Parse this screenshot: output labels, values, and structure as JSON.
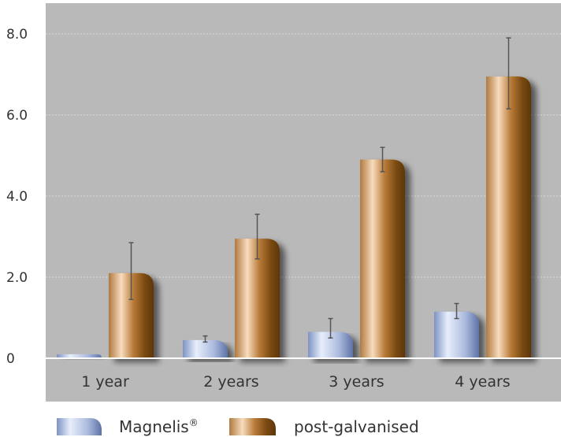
{
  "chart_data": {
    "type": "bar",
    "title": "",
    "xlabel": "",
    "ylabel": "",
    "ylim": [
      -0.6,
      8.7
    ],
    "y_ticks": [
      0,
      2.0,
      4.0,
      6.0,
      8.0
    ],
    "y_tick_labels": [
      "0",
      "2.0",
      "4.0",
      "6.0",
      "8.0"
    ],
    "grid": true,
    "legend_position": "bottom",
    "categories": [
      "1 year",
      "2 years",
      "3 years",
      "4 years"
    ],
    "series": [
      {
        "name": "Magnelis®",
        "name_base": "Magnelis",
        "name_sup": "®",
        "values": [
          0.1,
          0.45,
          0.65,
          1.15
        ],
        "error_low": [
          0.1,
          0.4,
          0.5,
          0.98
        ],
        "error_high": [
          0.1,
          0.55,
          0.98,
          1.35
        ]
      },
      {
        "name": "post-galvanised",
        "values": [
          2.1,
          2.95,
          4.9,
          6.95
        ],
        "error_low": [
          1.45,
          2.45,
          4.6,
          6.15
        ],
        "error_high": [
          2.85,
          3.55,
          5.2,
          7.9
        ]
      }
    ],
    "colors": {
      "plot_background": "#b9b9b9",
      "grid": "#dcdcdc",
      "zero_line": "#ffffff",
      "error_bar": "#555555",
      "magnelis_light": "#e6ecfa",
      "magnelis_mid": "#a9b9dc",
      "magnelis_dark": "#4a5f94",
      "galv_light": "#f6d6b4",
      "galv_mid": "#c98f52",
      "galv_dark": "#6a3f0c"
    }
  }
}
